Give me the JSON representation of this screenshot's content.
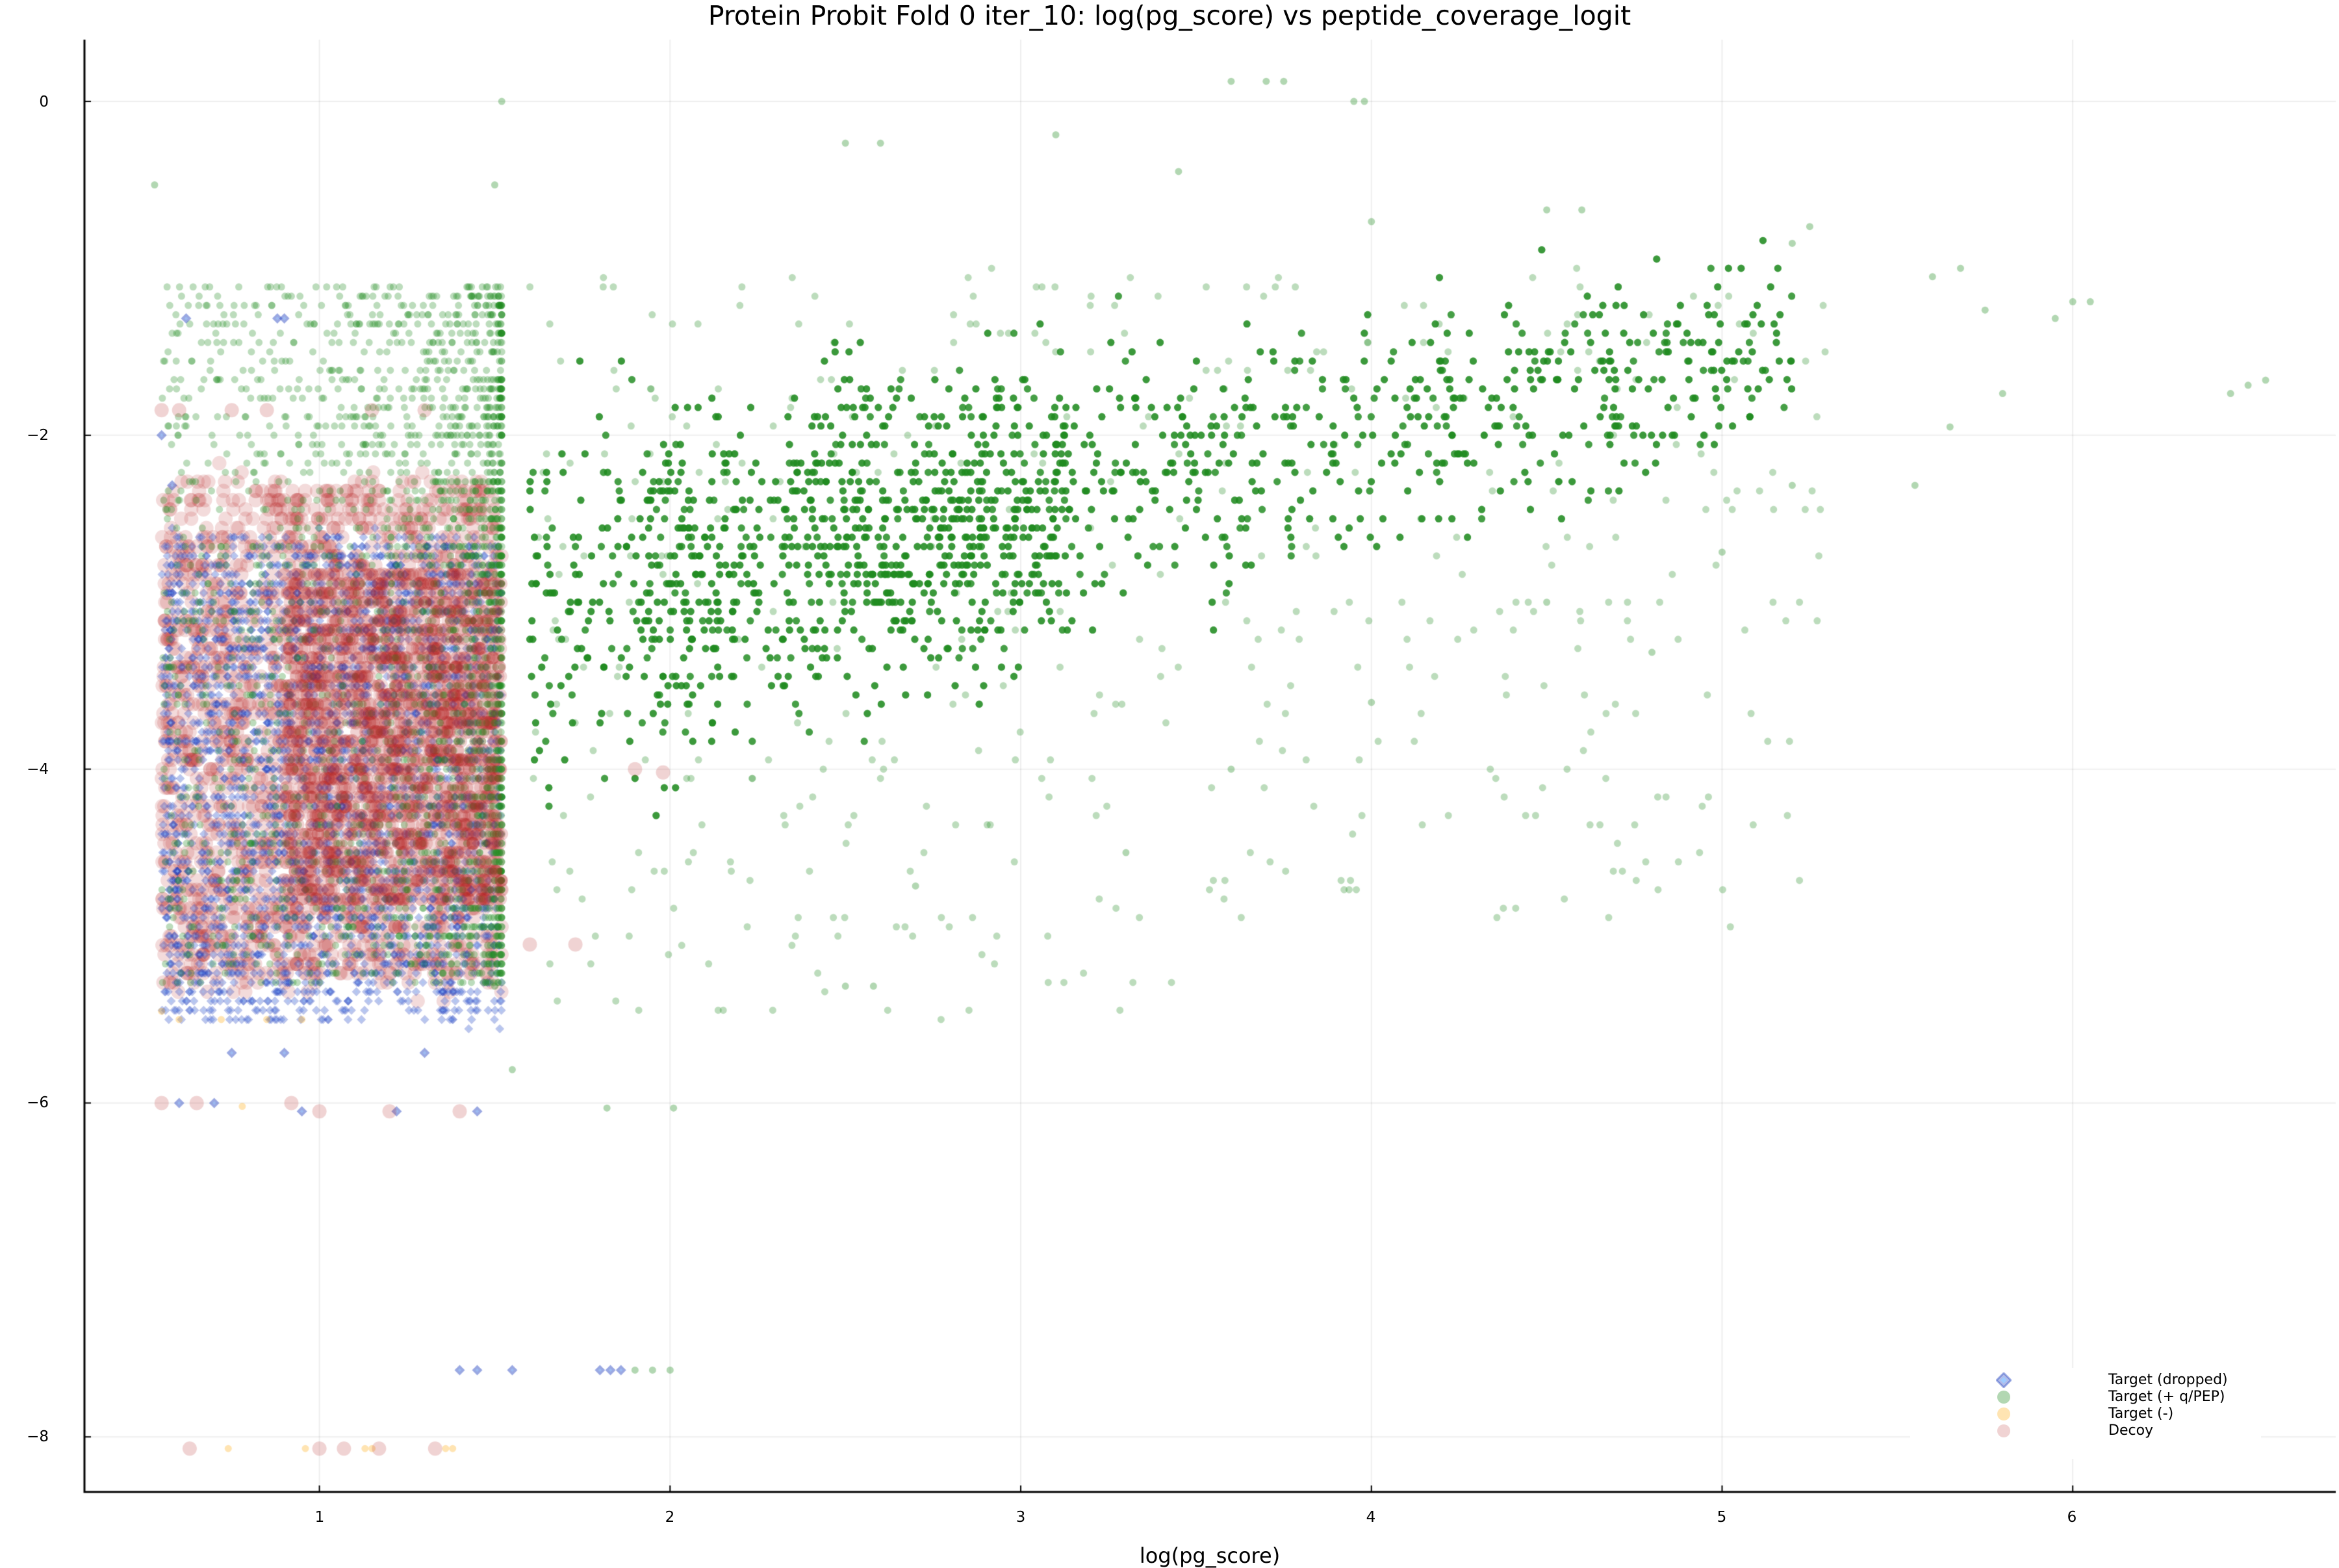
{
  "chart_data": {
    "type": "scatter",
    "title": "Protein Probit Fold 0 iter_10: log(pg_score) vs peptide_coverage_logit",
    "xlabel": "log(pg_score)",
    "ylabel": "",
    "xlim": [
      0.33,
      6.75
    ],
    "ylim": [
      -8.33,
      0.37
    ],
    "xticks": [
      1,
      2,
      3,
      4,
      5,
      6
    ],
    "yticks": [
      0,
      -2,
      -4,
      -6,
      -8
    ],
    "grid": true,
    "legend_position": "bottom-right",
    "legend": [
      {
        "label": "Target (dropped)",
        "marker": "diamond",
        "color": "#1f3fbf"
      },
      {
        "label": "Target (+ q/PEP)",
        "marker": "circle",
        "color": "#228b22"
      },
      {
        "label": "Target (-)",
        "marker": "circle",
        "color": "#ffa500"
      },
      {
        "label": "Decoy",
        "marker": "circle",
        "color": "#b22222"
      }
    ],
    "series": [
      {
        "name": "Target (+ q/PEP)",
        "color": "#228b22",
        "marker": "circle",
        "description": "Dense cloud; columns at x≈1.52, 2.22, 2.62, 2.9, 3.13; fans out to upper right",
        "clusters": [
          {
            "x": [
              0.55,
              1.52
            ],
            "y": [
              -5.4,
              -1.1
            ],
            "density": "high near x=1.52"
          },
          {
            "x": [
              1.6,
              2.22
            ],
            "y": [
              -5.5,
              -0.95
            ],
            "density": "medium"
          },
          {
            "x": [
              2.2,
              3.2
            ],
            "y": [
              -5.3,
              -0.2
            ],
            "density": "high"
          },
          {
            "x": [
              3.1,
              4.6
            ],
            "y": [
              -4.5,
              -0.6
            ],
            "density": "high"
          },
          {
            "x": [
              4.6,
              5.3
            ],
            "y": [
              -3.4,
              -0.7
            ],
            "density": "low"
          }
        ],
        "points": [
          [
            1.52,
            0.0
          ],
          [
            3.6,
            0.12
          ],
          [
            3.7,
            0.12
          ],
          [
            3.75,
            0.12
          ],
          [
            3.95,
            0.0
          ],
          [
            3.98,
            0.0
          ],
          [
            0.53,
            -0.5
          ],
          [
            1.5,
            -0.5
          ],
          [
            2.5,
            -0.25
          ],
          [
            2.6,
            -0.25
          ],
          [
            3.1,
            -0.2
          ],
          [
            3.45,
            -0.42
          ],
          [
            4.0,
            -0.72
          ],
          [
            4.5,
            -0.65
          ],
          [
            4.6,
            -0.65
          ],
          [
            5.25,
            -0.75
          ],
          [
            5.2,
            -0.85
          ],
          [
            5.6,
            -1.05
          ],
          [
            5.68,
            -1.0
          ],
          [
            5.75,
            -1.25
          ],
          [
            5.95,
            -1.3
          ],
          [
            6.0,
            -1.2
          ],
          [
            6.05,
            -1.2
          ],
          [
            6.45,
            -1.75
          ],
          [
            6.5,
            -1.7
          ],
          [
            6.55,
            -1.67
          ],
          [
            5.8,
            -1.75
          ],
          [
            5.65,
            -1.95
          ],
          [
            5.55,
            -2.3
          ],
          [
            5.2,
            -2.3
          ],
          [
            5.0,
            -2.7
          ],
          [
            4.5,
            -3.0
          ],
          [
            4.8,
            -3.3
          ],
          [
            4.0,
            -3.6
          ],
          [
            3.6,
            -4.0
          ],
          [
            3.3,
            -4.5
          ],
          [
            2.7,
            -4.7
          ],
          [
            2.5,
            -5.3
          ],
          [
            2.58,
            -5.3
          ],
          [
            1.82,
            -6.03
          ],
          [
            2.01,
            -6.03
          ],
          [
            1.9,
            -7.6
          ],
          [
            1.95,
            -7.6
          ],
          [
            2.0,
            -7.6
          ],
          [
            1.55,
            -5.8
          ],
          [
            1.5,
            -5.3
          ]
        ]
      },
      {
        "name": "Target (dropped)",
        "color": "#1f3fbf",
        "marker": "diamond",
        "description": "Concentrated between x≈0.55–1.52, y≈-6.1 to -1.3",
        "clusters": [
          {
            "x": [
              0.55,
              1.52
            ],
            "y": [
              -5.5,
              -2.6
            ],
            "density": "high"
          }
        ],
        "points": [
          [
            0.9,
            -1.3
          ],
          [
            0.88,
            -1.3
          ],
          [
            0.62,
            -1.3
          ],
          [
            0.55,
            -2.0
          ],
          [
            0.58,
            -2.3
          ],
          [
            0.75,
            -5.7
          ],
          [
            0.9,
            -5.7
          ],
          [
            1.3,
            -5.7
          ],
          [
            0.6,
            -6.0
          ],
          [
            0.7,
            -6.0
          ],
          [
            0.95,
            -6.05
          ],
          [
            1.22,
            -6.05
          ],
          [
            1.45,
            -6.05
          ],
          [
            1.4,
            -7.6
          ],
          [
            1.45,
            -7.6
          ],
          [
            1.55,
            -7.6
          ],
          [
            1.8,
            -7.6
          ],
          [
            1.83,
            -7.6
          ],
          [
            1.86,
            -7.6
          ]
        ]
      },
      {
        "name": "Target (-)",
        "color": "#ffa500",
        "marker": "circle",
        "description": "Sparse, near y≈-5.4 and y≈-8.07",
        "points": [
          [
            0.55,
            -5.45
          ],
          [
            0.6,
            -5.5
          ],
          [
            0.72,
            -5.5
          ],
          [
            0.85,
            -5.5
          ],
          [
            0.95,
            -5.5
          ],
          [
            0.78,
            -6.02
          ],
          [
            0.74,
            -8.07
          ],
          [
            0.96,
            -8.07
          ],
          [
            1.13,
            -8.07
          ],
          [
            1.15,
            -8.07
          ],
          [
            1.36,
            -8.07
          ],
          [
            1.38,
            -8.07
          ]
        ]
      },
      {
        "name": "Decoy",
        "color": "#b22222",
        "marker": "circle",
        "description": "Dense between x≈0.55–1.52, y≈-5.3 to -2.2; stragglers at y≈-1.85, -6.0, -8.07",
        "clusters": [
          {
            "x": [
              0.55,
              1.52
            ],
            "y": [
              -5.3,
              -2.2
            ],
            "density": "high"
          }
        ],
        "points": [
          [
            0.55,
            -1.85
          ],
          [
            0.6,
            -1.85
          ],
          [
            0.75,
            -1.85
          ],
          [
            0.85,
            -1.85
          ],
          [
            1.15,
            -1.85
          ],
          [
            1.3,
            -1.85
          ],
          [
            0.55,
            -6.0
          ],
          [
            0.65,
            -6.0
          ],
          [
            0.92,
            -6.0
          ],
          [
            1.0,
            -6.05
          ],
          [
            1.2,
            -6.05
          ],
          [
            1.4,
            -6.05
          ],
          [
            1.6,
            -5.05
          ],
          [
            1.73,
            -5.05
          ],
          [
            1.9,
            -4.0
          ],
          [
            1.98,
            -4.02
          ],
          [
            0.63,
            -8.07
          ],
          [
            1.0,
            -8.07
          ],
          [
            1.07,
            -8.07
          ],
          [
            1.17,
            -8.07
          ],
          [
            1.33,
            -8.07
          ]
        ]
      }
    ]
  }
}
